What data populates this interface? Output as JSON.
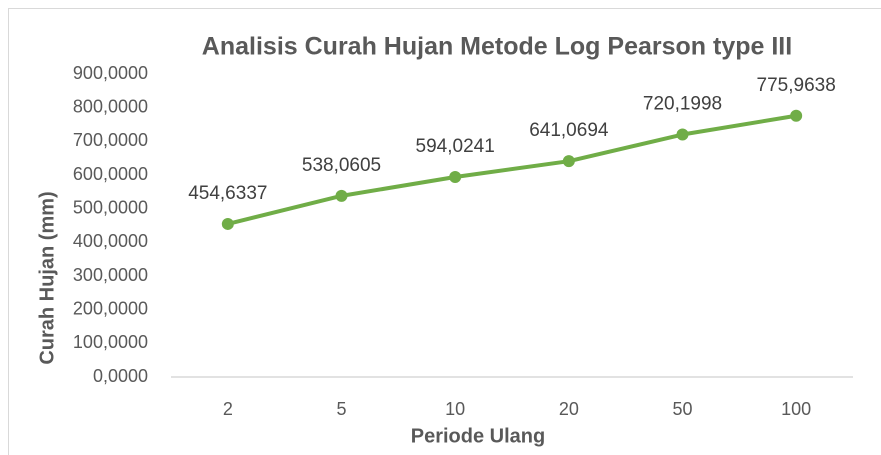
{
  "chart_data": {
    "type": "line",
    "title": "Analisis Curah Hujan Metode Log Pearson type III",
    "x_label": "Periode Ulang",
    "y_label": "Curah Hujan (mm)",
    "categories": [
      "2",
      "5",
      "10",
      "20",
      "50",
      "100"
    ],
    "series": [
      {
        "name": "Curah Hujan",
        "color": "#70ad47",
        "values": [
          454.6337,
          538.0605,
          594.0241,
          641.0694,
          720.1998,
          775.9638
        ],
        "value_labels": [
          "454,6337",
          "538,0605",
          "594,0241",
          "641,0694",
          "720,1998",
          "775,9638"
        ]
      }
    ],
    "ylim": [
      0,
      900
    ],
    "yticks": [
      {
        "value": 0,
        "label": "0,0000"
      },
      {
        "value": 100,
        "label": "100,0000"
      },
      {
        "value": 200,
        "label": "200,0000"
      },
      {
        "value": 300,
        "label": "300,0000"
      },
      {
        "value": 400,
        "label": "400,0000"
      },
      {
        "value": 500,
        "label": "500,0000"
      },
      {
        "value": 600,
        "label": "600,0000"
      },
      {
        "value": 700,
        "label": "700,0000"
      },
      {
        "value": 800,
        "label": "800,0000"
      },
      {
        "value": 900,
        "label": "900,0000"
      }
    ],
    "grid": false
  }
}
